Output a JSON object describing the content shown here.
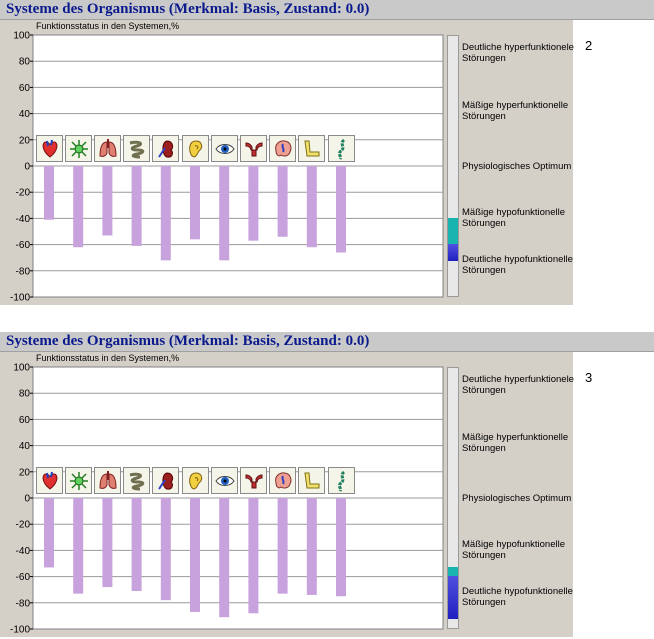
{
  "panels": [
    {
      "title": "Systeme des Organismus (Merkmal: Basis, Zustand: 0.0)",
      "panel_number": "2",
      "y_title": "Funktionsstatus in den Systemen,%",
      "zones": {
        "high": "Deutliche hyperfunktionele Störungen",
        "mid_high": "Mäßige hyperfunktionelle Störungen",
        "optimum": "Physiologisches Optimum",
        "mid_low": "Mäßige hypofunktionelle Störungen",
        "low": "Deutliche hypofunktionelle Störungen"
      },
      "scale_indicator": {
        "teal_from": -40,
        "teal_to": -60,
        "blue_from": -60,
        "blue_to": -73
      }
    },
    {
      "title": "Systeme des Organismus (Merkmal: Basis, Zustand: 0.0)",
      "panel_number": "3",
      "y_title": "Funktionsstatus in den Systemen,%",
      "zones": {
        "high": "Deutliche hyperfunktionele Störungen",
        "mid_high": "Mäßige hyperfunktionelle Störungen",
        "optimum": "Physiologisches Optimum",
        "mid_low": "Mäßige hypofunktionelle Störungen",
        "low": "Deutliche hypofunktionelle Störungen"
      },
      "scale_indicator": {
        "teal_from": -53,
        "teal_to": -60,
        "blue_from": -60,
        "blue_to": -93
      }
    }
  ],
  "icons": [
    "heart-icon",
    "nerve-cell-icon",
    "lungs-icon",
    "intestine-icon",
    "kidney-icon",
    "ear-icon",
    "eye-icon",
    "uterus-icon",
    "brain-icon",
    "joint-icon",
    "spine-icon"
  ],
  "colors": {
    "bar": "#c8a2dc",
    "teal": "#19b4b0",
    "blue": "#5050e0",
    "title": "#0a1a8c"
  },
  "chart_data": [
    {
      "type": "bar",
      "title": "Systeme des Organismus (Merkmal: Basis, Zustand: 0.0)",
      "ylabel": "Funktionsstatus in den Systemen,%",
      "ylim": [
        -100,
        100
      ],
      "yticks": [
        100,
        80,
        60,
        40,
        20,
        0,
        -20,
        -40,
        -60,
        -80,
        -100
      ],
      "grid": true,
      "values": [
        -41,
        -62,
        -53,
        -61,
        -72,
        -56,
        -72,
        -57,
        -54,
        -62,
        -66
      ]
    },
    {
      "type": "bar",
      "title": "Systeme des Organismus (Merkmal: Basis, Zustand: 0.0)",
      "ylabel": "Funktionsstatus in den Systemen,%",
      "ylim": [
        -100,
        100
      ],
      "yticks": [
        100,
        80,
        60,
        40,
        20,
        0,
        -20,
        -40,
        -60,
        -80,
        -100
      ],
      "grid": true,
      "values": [
        -53,
        -73,
        -68,
        -71,
        -78,
        -87,
        -91,
        -88,
        -73,
        -74,
        -75
      ]
    }
  ]
}
